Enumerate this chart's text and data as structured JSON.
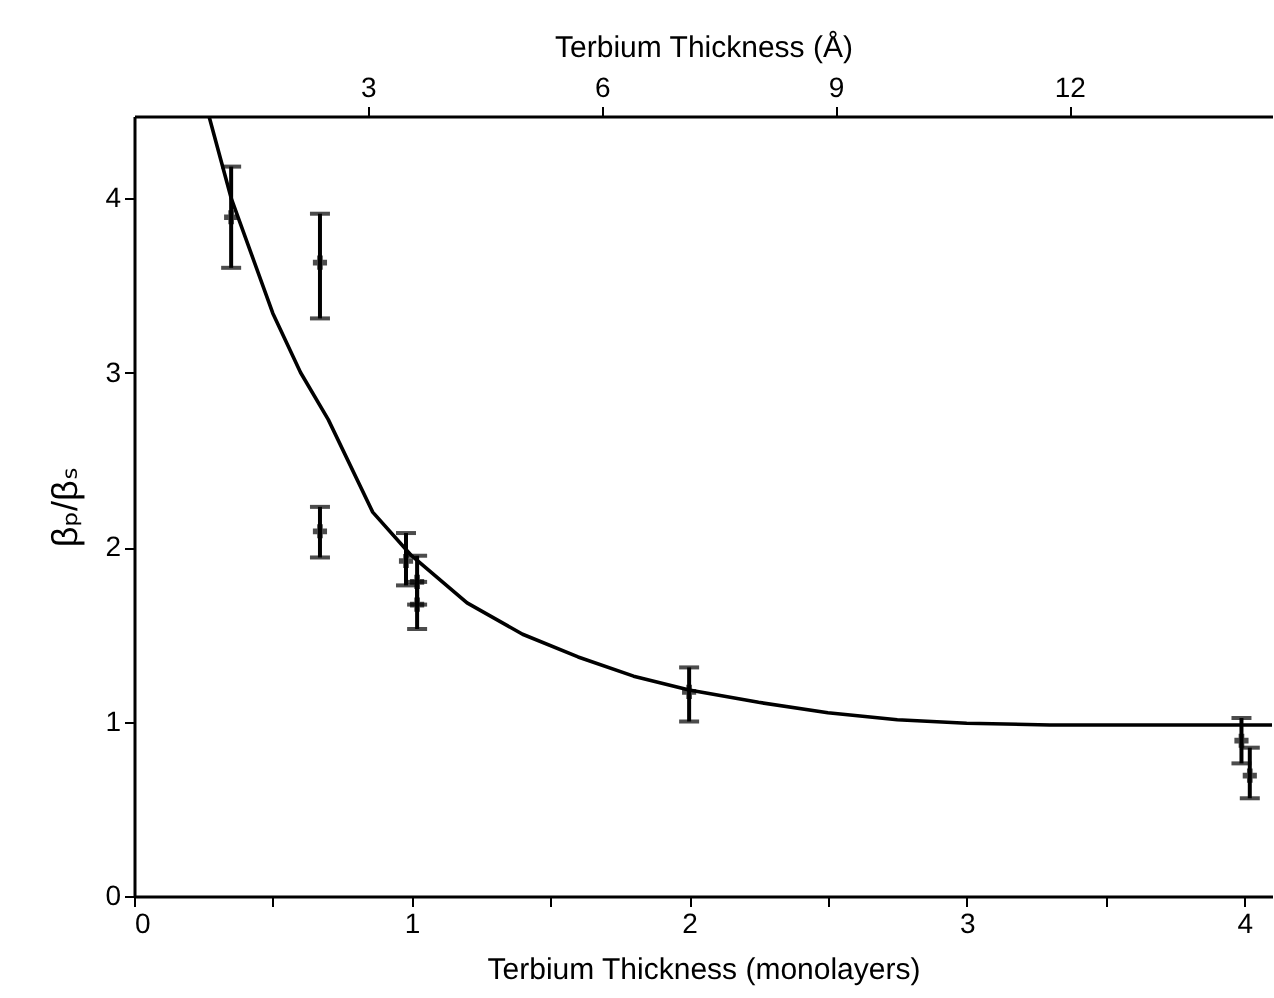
{
  "chart_data": {
    "type": "scatter",
    "xlabel": "Terbium Thickness (monolayers)",
    "x2label": "Terbium Thickness (Å)",
    "ylabel": "βₚ/βₛ",
    "xlim": [
      0,
      4.1
    ],
    "xticks": [
      0,
      {
        "value": 0.5,
        "label": null
      },
      1,
      {
        "value": 1.5,
        "label": null
      },
      2,
      {
        "value": 2.5,
        "label": null
      },
      3,
      {
        "value": 3.5,
        "label": null
      },
      4
    ],
    "x2lim": [
      0,
      14.6
    ],
    "x2ticks": [
      3,
      6,
      9,
      12
    ],
    "ylim": [
      0,
      4.47
    ],
    "yticks": [
      0,
      1,
      2,
      3,
      4
    ],
    "grid": false,
    "series": [
      {
        "type": "scatter",
        "color": "#000000",
        "marker": "cross",
        "x": [
          0.35,
          0.67,
          0.67,
          0.98,
          1.02,
          1.02,
          2.0,
          3.99,
          4.02
        ],
        "values": [
          3.89,
          3.63,
          2.09,
          1.92,
          1.8,
          1.67,
          1.17,
          0.89,
          0.69
        ],
        "errors": [
          [
            3.6,
            4.18
          ],
          [
            3.31,
            3.91
          ],
          [
            1.94,
            2.23
          ],
          [
            1.78,
            2.08
          ],
          [
            1.67,
            1.95
          ],
          [
            1.53,
            1.8
          ],
          [
            1.0,
            1.31
          ],
          [
            0.76,
            1.02
          ],
          [
            0.56,
            0.85
          ]
        ]
      },
      {
        "type": "line",
        "color": "#000000",
        "line_style": "solid",
        "x": [
          0.27,
          0.35,
          0.5,
          0.6,
          0.7,
          0.86,
          1.0,
          1.2,
          1.4,
          1.6,
          1.8,
          2.0,
          2.25,
          2.5,
          2.75,
          3.0,
          3.3,
          3.6,
          4.1
        ],
        "values": [
          4.47,
          4.0,
          3.34,
          3.0,
          2.73,
          2.2,
          1.95,
          1.68,
          1.5,
          1.37,
          1.26,
          1.18,
          1.11,
          1.05,
          1.01,
          0.99,
          0.98,
          0.98,
          0.98
        ]
      }
    ]
  }
}
